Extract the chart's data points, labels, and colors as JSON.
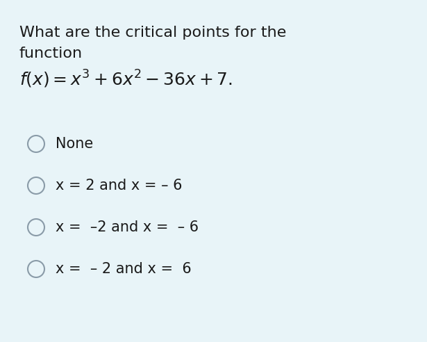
{
  "background_color": "#e8f4f8",
  "fig_width": 6.15,
  "fig_height": 4.92,
  "question_line1": "What are the critical points for the",
  "question_line2": "function",
  "formula": "$f(x) = x^3 + 6x^2 - 36x + 7.$",
  "options": [
    "None",
    "x = 2 and x = – 6",
    "x =  –2 and x =  – 6",
    "x =  – 2 and x =  6"
  ],
  "text_color": "#1a1a1a",
  "circle_edge_color": "#8a9ba8",
  "circle_fill_color": "#e8f4f8",
  "font_size_question": 16,
  "font_size_formula": 18,
  "font_size_options": 15
}
